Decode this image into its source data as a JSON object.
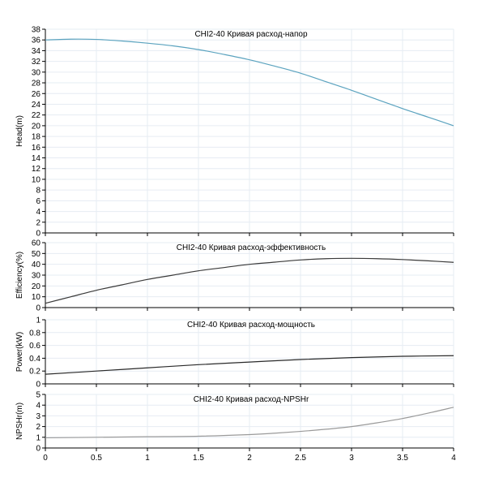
{
  "chart_data": [
    {
      "type": "line",
      "title": "CHI2-40 Кривая расход-напор",
      "xlabel": "",
      "ylabel": "Head(m)",
      "xlim": [
        0,
        4
      ],
      "ylim": [
        0,
        38
      ],
      "yticks": [
        0,
        2,
        4,
        6,
        8,
        10,
        12,
        14,
        16,
        18,
        20,
        22,
        24,
        26,
        28,
        30,
        32,
        34,
        36,
        38
      ],
      "grid": true,
      "series": [
        {
          "name": "Head",
          "color": "#5ba3bf",
          "x": [
            0,
            0.25,
            0.5,
            0.75,
            1,
            1.25,
            1.5,
            1.75,
            2,
            2.25,
            2.5,
            2.75,
            3,
            3.25,
            3.5,
            3.75,
            4
          ],
          "y": [
            36.0,
            36.15,
            36.1,
            35.8,
            35.4,
            34.9,
            34.2,
            33.3,
            32.3,
            31.1,
            29.8,
            28.2,
            26.6,
            24.9,
            23.2,
            21.6,
            20.0
          ]
        }
      ]
    },
    {
      "type": "line",
      "title": "CHI2-40 Кривая расход-эффективность",
      "xlabel": "",
      "ylabel": "Efficiency(%)",
      "xlim": [
        0,
        4
      ],
      "ylim": [
        0,
        60
      ],
      "yticks": [
        0,
        10,
        20,
        30,
        40,
        50,
        60
      ],
      "grid": true,
      "series": [
        {
          "name": "Efficiency",
          "color": "#3a3a3a",
          "x": [
            0,
            0.25,
            0.5,
            0.75,
            1,
            1.25,
            1.5,
            1.75,
            2,
            2.25,
            2.5,
            2.75,
            3,
            3.25,
            3.5,
            3.75,
            4
          ],
          "y": [
            4,
            10,
            16,
            21,
            26,
            30,
            34,
            37,
            40,
            42,
            44,
            45.2,
            45.5,
            45.2,
            44.4,
            43.2,
            41.8
          ]
        }
      ]
    },
    {
      "type": "line",
      "title": "CHI2-40 Кривая расход-мощность",
      "xlabel": "",
      "ylabel": "Power(kW)",
      "xlim": [
        0,
        4
      ],
      "ylim": [
        0,
        1
      ],
      "yticks": [
        0,
        0.2,
        0.4,
        0.6,
        0.8,
        1
      ],
      "grid": true,
      "series": [
        {
          "name": "Power",
          "color": "#2a2a2a",
          "x": [
            0,
            0.5,
            1,
            1.5,
            2,
            2.5,
            3,
            3.5,
            4
          ],
          "y": [
            0.15,
            0.2,
            0.25,
            0.3,
            0.34,
            0.38,
            0.41,
            0.43,
            0.44
          ]
        }
      ]
    },
    {
      "type": "line",
      "title": "CHI2-40 Кривая расход-NPSHr",
      "xlabel": "",
      "ylabel": "NPSHr(m)",
      "xlim": [
        0,
        4
      ],
      "ylim": [
        0,
        5
      ],
      "yticks": [
        0,
        1,
        2,
        3,
        4,
        5
      ],
      "xticks": [
        0,
        0.5,
        1,
        1.5,
        2,
        2.5,
        3,
        3.5,
        4
      ],
      "grid": true,
      "series": [
        {
          "name": "NPSHr",
          "color": "#9a9a9a",
          "x": [
            0,
            0.5,
            1,
            1.5,
            2,
            2.25,
            2.5,
            2.75,
            3,
            3.25,
            3.5,
            3.75,
            4
          ],
          "y": [
            0.95,
            1.0,
            1.05,
            1.1,
            1.25,
            1.38,
            1.55,
            1.75,
            2.0,
            2.35,
            2.75,
            3.25,
            3.8
          ]
        }
      ]
    }
  ]
}
